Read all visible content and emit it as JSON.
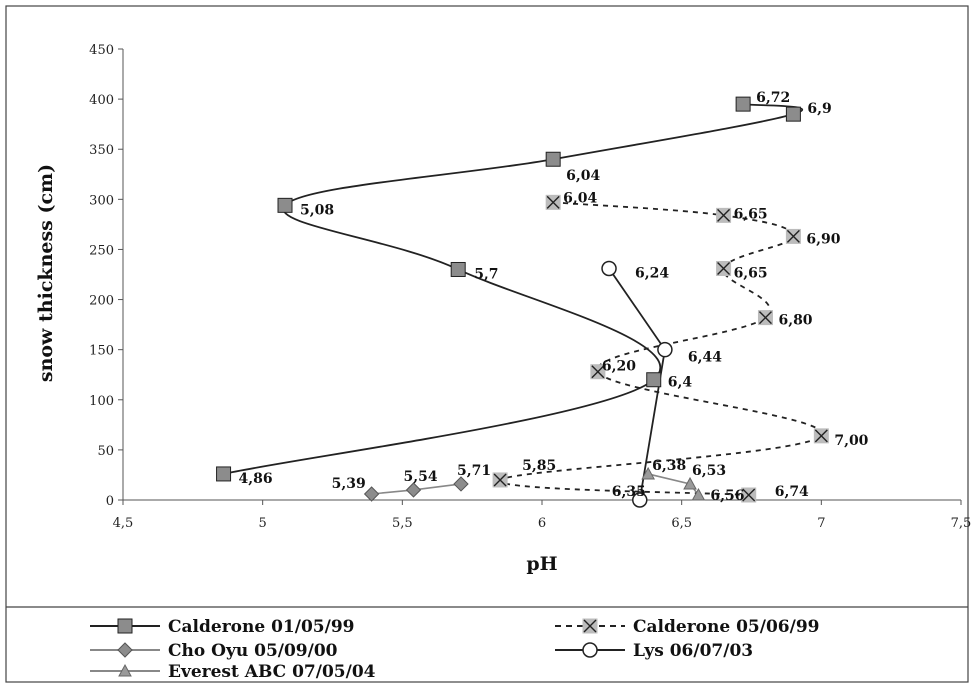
{
  "chart_data": {
    "type": "line",
    "xlabel": "pH",
    "ylabel": "snow thickness (cm)",
    "xlim": [
      4.5,
      7.5
    ],
    "ylim": [
      0,
      450
    ],
    "xticks": [
      4.5,
      5,
      5.5,
      6,
      6.5,
      7,
      7.5
    ],
    "xtick_labels": [
      "4,5",
      "5",
      "5,5",
      "6",
      "6,5",
      "7",
      "7,5"
    ],
    "yticks": [
      0,
      50,
      100,
      150,
      200,
      250,
      300,
      350,
      400,
      450
    ],
    "ytick_labels": [
      "0",
      "50",
      "100",
      "150",
      "200",
      "250",
      "300",
      "350",
      "400",
      "450"
    ],
    "grid": false,
    "legend_position": "bottom",
    "series": [
      {
        "name": "Calderone 01/05/99",
        "style": "solid",
        "smooth": true,
        "marker": "square",
        "color": "#222222",
        "marker_color": "#8c8c8c",
        "points": [
          [
            6.72,
            395
          ],
          [
            6.9,
            385
          ],
          [
            6.04,
            340
          ],
          [
            5.08,
            294
          ],
          [
            5.7,
            230
          ],
          [
            6.4,
            120
          ],
          [
            4.86,
            26
          ]
        ],
        "labels": [
          "6,72",
          "6,9",
          "6,04",
          "5,08",
          "5,7",
          "6,4",
          "4,86"
        ]
      },
      {
        "name": "Calderone 05/06/99",
        "style": "dashed",
        "smooth": true,
        "marker": "x-square",
        "color": "#222222",
        "marker_color": "#bcbcbc",
        "points": [
          [
            6.04,
            297
          ],
          [
            6.65,
            284
          ],
          [
            6.9,
            263
          ],
          [
            6.65,
            231
          ],
          [
            6.8,
            182
          ],
          [
            6.2,
            128
          ],
          [
            7.0,
            64
          ],
          [
            5.85,
            20
          ],
          [
            6.74,
            5
          ]
        ],
        "labels": [
          "6,04",
          "6,65",
          "6,90",
          "6,65",
          "6,80",
          "6,20",
          "7,00",
          "5,85",
          "6,74"
        ]
      },
      {
        "name": "Cho Oyu 05/09/00",
        "style": "solid",
        "smooth": false,
        "marker": "diamond",
        "color": "#888888",
        "marker_color": "#8c8c8c",
        "points": [
          [
            5.39,
            6
          ],
          [
            5.54,
            10
          ],
          [
            5.71,
            16
          ]
        ],
        "labels": [
          "5,39",
          "5,54",
          "5,71"
        ]
      },
      {
        "name": "Lys 06/07/03",
        "style": "solid",
        "smooth": false,
        "marker": "circle",
        "color": "#222222",
        "marker_color": "#ffffff",
        "points": [
          [
            6.24,
            231
          ],
          [
            6.44,
            150
          ],
          [
            6.35,
            0
          ]
        ],
        "labels": [
          "6,24",
          "6,44",
          "6,35"
        ]
      },
      {
        "name": "Everest ABC 07/05/04",
        "style": "solid",
        "smooth": false,
        "marker": "triangle",
        "color": "#888888",
        "marker_color": "#9a9a9a",
        "points": [
          [
            6.38,
            26
          ],
          [
            6.53,
            16
          ],
          [
            6.56,
            5
          ]
        ],
        "labels": [
          "6,38",
          "6,53",
          "6,56"
        ]
      }
    ]
  }
}
